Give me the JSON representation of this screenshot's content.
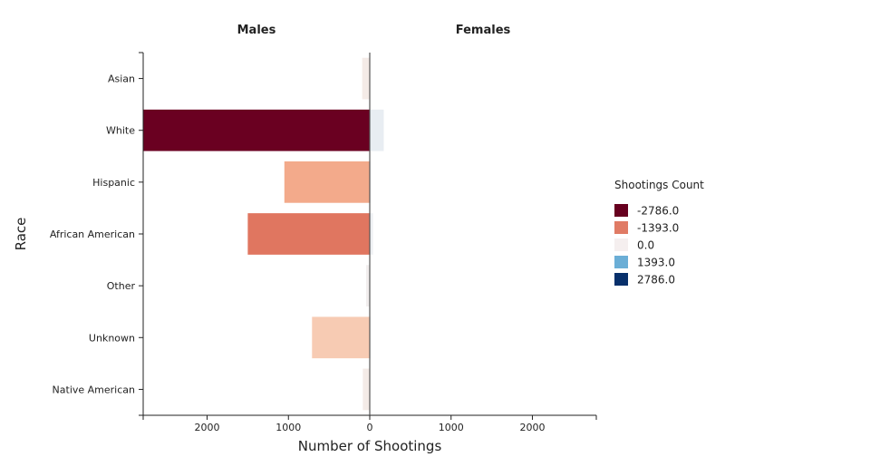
{
  "chart_data": {
    "type": "bar",
    "orientation": "horizontal",
    "layout": "diverging-population-pyramid",
    "panel_titles": [
      "Males",
      "Females"
    ],
    "ylabel": "Race",
    "xlabel": "Number of Shootings",
    "categories": [
      "Asian",
      "White",
      "Hispanic",
      "African American",
      "Other",
      "Unknown",
      "Native American"
    ],
    "series": [
      {
        "name": "Males",
        "values": [
          -93,
          -2786,
          -1050,
          -1500,
          -45,
          -710,
          -85
        ]
      },
      {
        "name": "Females",
        "values": [
          3,
          172,
          12,
          40,
          2,
          12,
          2
        ]
      }
    ],
    "xlim": [
      -2786,
      2786
    ],
    "x_ticks": [
      {
        "value": -2000,
        "label": "2000"
      },
      {
        "value": -1000,
        "label": "1000"
      },
      {
        "value": 0,
        "label": "0"
      },
      {
        "value": 1000,
        "label": "1000"
      },
      {
        "value": 2000,
        "label": "2000"
      }
    ],
    "colorscale": {
      "title": "Shootings Count",
      "stops": [
        {
          "value": -2786.0,
          "label": "-2786.0",
          "color": "#67001f"
        },
        {
          "value": -1393.0,
          "label": "-1393.0",
          "color": "#e07b65"
        },
        {
          "value": 0.0,
          "label": "0.0",
          "color": "#f5efef"
        },
        {
          "value": 1393.0,
          "label": "1393.0",
          "color": "#6baed6"
        },
        {
          "value": 2786.0,
          "label": "2786.0",
          "color": "#08306b"
        }
      ]
    },
    "bar_colors": {
      "Males": [
        "#f4ebe7",
        "#6a0021",
        "#f3aa8b",
        "#e07660",
        "#f2eeee",
        "#f7cbb3",
        "#f4ebe7"
      ],
      "Females": [
        "#f2f3f4",
        "#e8edf2",
        "#f2f2f2",
        "#eef0f3",
        "#f3f3f3",
        "#f2f2f2",
        "#f3f3f3"
      ]
    },
    "center_line_color": "#555555",
    "grid": false,
    "legend_position": "right"
  }
}
